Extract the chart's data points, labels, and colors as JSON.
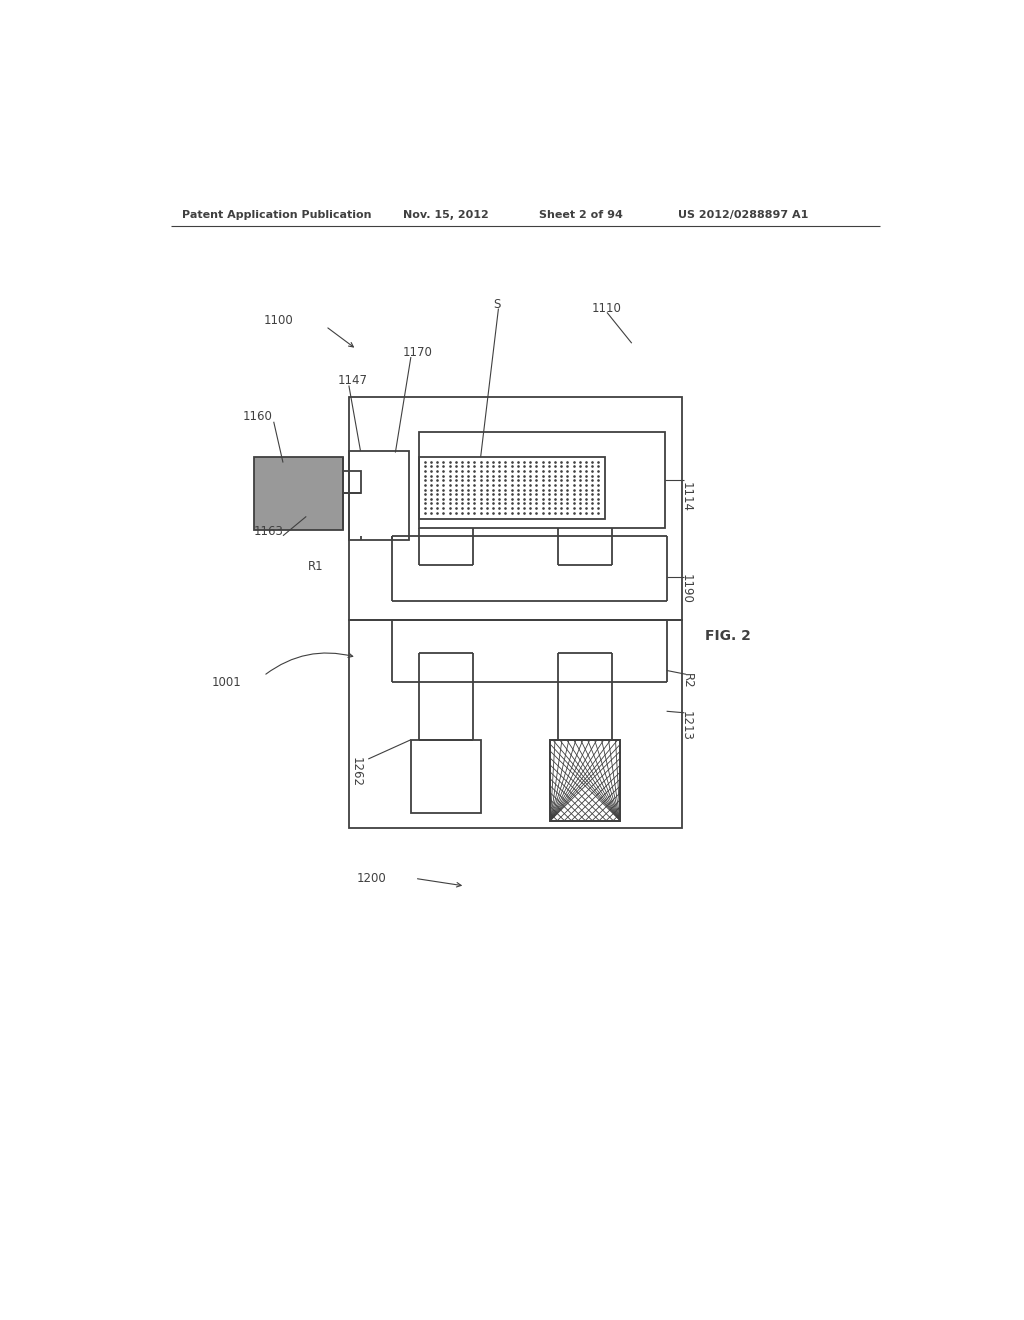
{
  "bg_color": "#ffffff",
  "line_color": "#404040",
  "header_text": "Patent Application Publication",
  "header_date": "Nov. 15, 2012",
  "header_sheet": "Sheet 2 of 94",
  "header_patent": "US 2012/0288897 A1",
  "fig_label": "FIG. 2",
  "dark_fill": "#999999",
  "hatch_fill": "#e8e8e8",
  "cross_fill": "#c8c8c8"
}
